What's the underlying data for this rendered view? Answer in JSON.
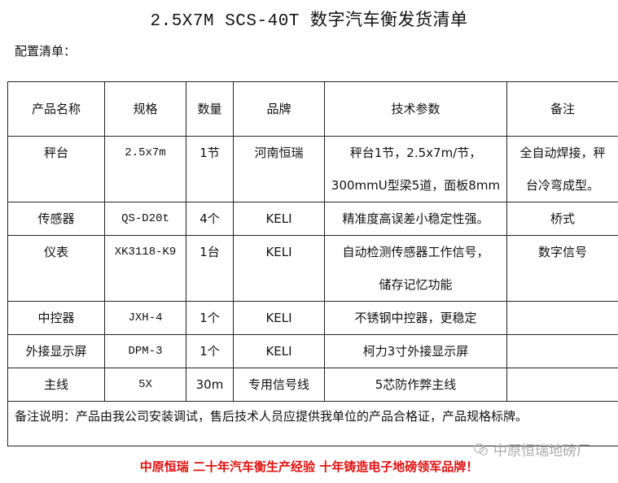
{
  "title": "2.5X7M SCS-40T 数字汽车衡发货清单",
  "subtitle": "配置清单：",
  "table": {
    "headers": [
      "产品名称",
      "规格",
      "数量",
      "品牌",
      "技术参数",
      "备注"
    ],
    "rows": [
      {
        "name": "秤台",
        "spec": "2.5x7m",
        "qty": "1节",
        "brand": "河南恒瑞",
        "params": [
          "秤台1节，2.5x7m/节，",
          "300mmU型梁5道，面板8mm"
        ],
        "remark": [
          "全自动焊接，秤",
          "台冷弯成型。"
        ]
      },
      {
        "name": "传感器",
        "spec": "QS-D20t",
        "qty": "4个",
        "brand": "KELI",
        "params": [
          "精准度高误差小稳定性强。"
        ],
        "remark": [
          "桥式"
        ]
      },
      {
        "name": "仪表",
        "spec": "XK3118-K9",
        "qty": "1台",
        "brand": "KELI",
        "params": [
          "自动检测传感器工作信号，",
          "储存记忆功能"
        ],
        "remark": [
          "数字信号"
        ]
      },
      {
        "name": "中控器",
        "spec": "JXH-4",
        "qty": "1个",
        "brand": "KELI",
        "params": [
          "不锈钢中控器，更稳定"
        ],
        "remark": [
          ""
        ]
      },
      {
        "name": "外接显示屏",
        "spec": "DPM-3",
        "qty": "1个",
        "brand": "KELI",
        "params": [
          "柯力3寸外接显示屏"
        ],
        "remark": [
          ""
        ]
      },
      {
        "name": "主线",
        "spec": "5X",
        "qty": "30m",
        "brand": "专用信号线",
        "params": [
          "5芯防作弊主线"
        ],
        "remark": [
          ""
        ]
      }
    ],
    "note": "备注说明：产品由我公司安装调试，售后技术人员应提供我单位的产品合格证，产品规格标牌。"
  },
  "slogan": "中原恒瑞 二十年汽车衡生产经验 十年铸造电子地磅领军品牌！",
  "watermark": "中原恒瑞地磅厂",
  "colors": {
    "slogan": "#e01010",
    "watermark": "#aaaaaa"
  }
}
